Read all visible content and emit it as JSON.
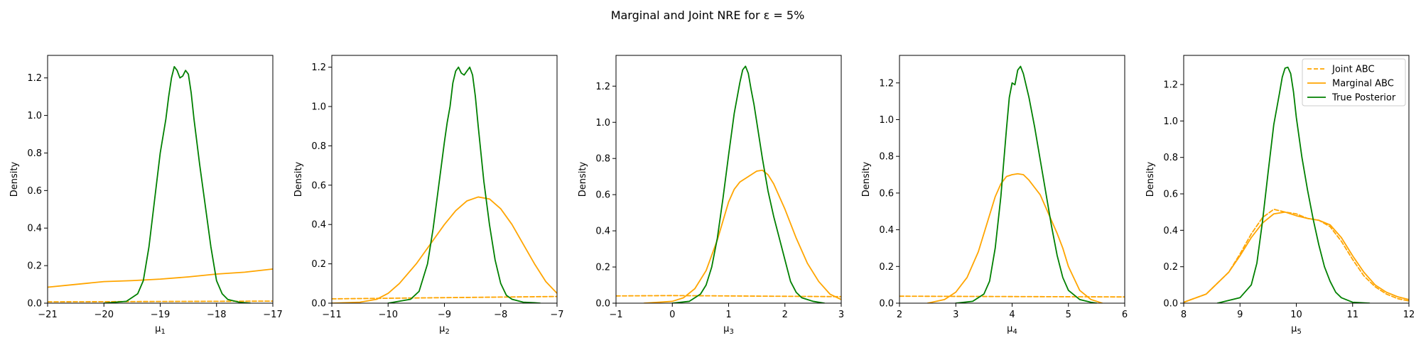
{
  "title": "Marginal and Joint NRE for ε =  5%",
  "colors": {
    "joint_abc": "#FFA500",
    "marginal_abc": "#FFA500",
    "true_posterior": "#008000"
  },
  "legend": {
    "placement": "upper right of panel 5",
    "entries": [
      {
        "label": "Joint ABC",
        "series": "joint_abc",
        "style": "dashed"
      },
      {
        "label": "Marginal ABC",
        "series": "marginal_abc",
        "style": "solid"
      },
      {
        "label": "True Posterior",
        "series": "true_posterior",
        "style": "solid"
      }
    ]
  },
  "chart_data": [
    {
      "type": "line",
      "xlabel": "μ",
      "xlabel_sub": "1",
      "ylabel": "Density",
      "xlim": [
        -21,
        -17
      ],
      "ylim": [
        0,
        1.32
      ],
      "xticks": [
        -21,
        -20,
        -19,
        -18,
        -17
      ],
      "xtick_labels": [
        "−21",
        "−20",
        "−19",
        "−18",
        "−17"
      ],
      "yticks": [
        0.0,
        0.2,
        0.4,
        0.6,
        0.8,
        1.0,
        1.2
      ],
      "ytick_labels": [
        "0.0",
        "0.2",
        "0.4",
        "0.6",
        "0.8",
        "1.0",
        "1.2"
      ],
      "series": [
        {
          "name": "Joint ABC",
          "key": "joint_abc",
          "x": [
            -21,
            -20,
            -19,
            -18,
            -17
          ],
          "y": [
            0.007,
            0.008,
            0.009,
            0.01,
            0.011
          ]
        },
        {
          "name": "Marginal ABC",
          "key": "marginal_abc",
          "x": [
            -21,
            -20.5,
            -20,
            -19.5,
            -19,
            -18.5,
            -18,
            -17.5,
            -17
          ],
          "y": [
            0.085,
            0.1,
            0.115,
            0.12,
            0.128,
            0.14,
            0.155,
            0.165,
            0.182
          ]
        },
        {
          "name": "True Posterior",
          "key": "true_posterior",
          "x": [
            -20.0,
            -19.6,
            -19.4,
            -19.3,
            -19.2,
            -19.1,
            -19.0,
            -18.9,
            -18.85,
            -18.8,
            -18.75,
            -18.7,
            -18.65,
            -18.6,
            -18.55,
            -18.5,
            -18.45,
            -18.4,
            -18.3,
            -18.2,
            -18.1,
            -18.0,
            -17.9,
            -17.8,
            -17.6,
            -17.4
          ],
          "y": [
            0.0,
            0.01,
            0.05,
            0.12,
            0.3,
            0.55,
            0.8,
            0.98,
            1.1,
            1.2,
            1.26,
            1.24,
            1.2,
            1.21,
            1.24,
            1.22,
            1.12,
            0.98,
            0.74,
            0.52,
            0.3,
            0.12,
            0.05,
            0.02,
            0.005,
            0.0
          ]
        }
      ]
    },
    {
      "type": "line",
      "xlabel": "μ",
      "xlabel_sub": "2",
      "ylabel": "Density",
      "xlim": [
        -11,
        -7
      ],
      "ylim": [
        0,
        1.26
      ],
      "xticks": [
        -11,
        -10,
        -9,
        -8,
        -7
      ],
      "xtick_labels": [
        "−11",
        "−10",
        "−9",
        "−8",
        "−7"
      ],
      "yticks": [
        0.0,
        0.2,
        0.4,
        0.6,
        0.8,
        1.0,
        1.2
      ],
      "ytick_labels": [
        "0.0",
        "0.2",
        "0.4",
        "0.6",
        "0.8",
        "1.0",
        "1.2"
      ],
      "series": [
        {
          "name": "Joint ABC",
          "key": "joint_abc",
          "x": [
            -11,
            -10,
            -9,
            -8,
            -7
          ],
          "y": [
            0.022,
            0.025,
            0.028,
            0.031,
            0.034
          ]
        },
        {
          "name": "Marginal ABC",
          "key": "marginal_abc",
          "x": [
            -11,
            -10.5,
            -10.2,
            -10.0,
            -9.8,
            -9.5,
            -9.2,
            -9.0,
            -8.8,
            -8.6,
            -8.4,
            -8.2,
            -8.0,
            -7.8,
            -7.6,
            -7.4,
            -7.2,
            -7.0
          ],
          "y": [
            0.0,
            0.005,
            0.02,
            0.05,
            0.1,
            0.2,
            0.32,
            0.4,
            0.47,
            0.52,
            0.54,
            0.53,
            0.48,
            0.4,
            0.3,
            0.2,
            0.11,
            0.05
          ]
        },
        {
          "name": "True Posterior",
          "key": "true_posterior",
          "x": [
            -10.0,
            -9.6,
            -9.45,
            -9.3,
            -9.2,
            -9.1,
            -9.0,
            -8.95,
            -8.9,
            -8.85,
            -8.8,
            -8.75,
            -8.7,
            -8.65,
            -8.6,
            -8.55,
            -8.5,
            -8.45,
            -8.4,
            -8.3,
            -8.2,
            -8.1,
            -8.0,
            -7.9,
            -7.8,
            -7.6,
            -7.4,
            -7.3
          ],
          "y": [
            0.0,
            0.02,
            0.06,
            0.2,
            0.38,
            0.6,
            0.82,
            0.92,
            1.0,
            1.12,
            1.18,
            1.2,
            1.17,
            1.16,
            1.18,
            1.2,
            1.16,
            1.05,
            0.9,
            0.62,
            0.4,
            0.22,
            0.1,
            0.04,
            0.02,
            0.005,
            0.002,
            0.0
          ]
        }
      ]
    },
    {
      "type": "line",
      "xlabel": "μ",
      "xlabel_sub": "3",
      "ylabel": "Density",
      "xlim": [
        -1,
        3
      ],
      "ylim": [
        0,
        1.37
      ],
      "xticks": [
        -1,
        0,
        1,
        2,
        3
      ],
      "xtick_labels": [
        "−1",
        "0",
        "1",
        "2",
        "3"
      ],
      "yticks": [
        0.0,
        0.2,
        0.4,
        0.6,
        0.8,
        1.0,
        1.2
      ],
      "ytick_labels": [
        "0.0",
        "0.2",
        "0.4",
        "0.6",
        "0.8",
        "1.0",
        "1.2"
      ],
      "series": [
        {
          "name": "Joint ABC",
          "key": "joint_abc",
          "x": [
            -1,
            0,
            1,
            2,
            3
          ],
          "y": [
            0.04,
            0.042,
            0.04,
            0.038,
            0.036
          ]
        },
        {
          "name": "Marginal ABC",
          "key": "marginal_abc",
          "x": [
            -0.5,
            0.0,
            0.2,
            0.4,
            0.6,
            0.8,
            1.0,
            1.1,
            1.2,
            1.3,
            1.4,
            1.5,
            1.6,
            1.7,
            1.8,
            2.0,
            2.2,
            2.4,
            2.6,
            2.8,
            3.0
          ],
          "y": [
            0.0,
            0.01,
            0.03,
            0.08,
            0.18,
            0.35,
            0.56,
            0.63,
            0.67,
            0.69,
            0.71,
            0.73,
            0.735,
            0.71,
            0.66,
            0.52,
            0.36,
            0.22,
            0.12,
            0.05,
            0.02
          ]
        },
        {
          "name": "True Posterior",
          "key": "true_posterior",
          "x": [
            0.0,
            0.3,
            0.5,
            0.6,
            0.7,
            0.8,
            0.9,
            1.0,
            1.1,
            1.2,
            1.25,
            1.3,
            1.35,
            1.4,
            1.45,
            1.5,
            1.6,
            1.7,
            1.8,
            1.9,
            2.0,
            2.1,
            2.2,
            2.3,
            2.5,
            2.7
          ],
          "y": [
            0.0,
            0.01,
            0.05,
            0.1,
            0.2,
            0.36,
            0.58,
            0.82,
            1.05,
            1.22,
            1.29,
            1.31,
            1.27,
            1.18,
            1.1,
            1.0,
            0.8,
            0.62,
            0.48,
            0.36,
            0.24,
            0.12,
            0.06,
            0.03,
            0.01,
            0.0
          ]
        }
      ]
    },
    {
      "type": "line",
      "xlabel": "μ",
      "xlabel_sub": "4",
      "ylabel": "Density",
      "xlim": [
        2,
        6
      ],
      "ylim": [
        0,
        1.35
      ],
      "xticks": [
        2,
        3,
        4,
        5,
        6
      ],
      "xtick_labels": [
        "2",
        "3",
        "4",
        "5",
        "6"
      ],
      "yticks": [
        0.0,
        0.2,
        0.4,
        0.6,
        0.8,
        1.0,
        1.2
      ],
      "ytick_labels": [
        "0.0",
        "0.2",
        "0.4",
        "0.6",
        "0.8",
        "1.0",
        "1.2"
      ],
      "series": [
        {
          "name": "Joint ABC",
          "key": "joint_abc",
          "x": [
            2,
            3,
            4,
            5,
            6
          ],
          "y": [
            0.038,
            0.037,
            0.036,
            0.035,
            0.034
          ]
        },
        {
          "name": "Marginal ABC",
          "key": "marginal_abc",
          "x": [
            2.5,
            2.8,
            3.0,
            3.2,
            3.4,
            3.5,
            3.6,
            3.7,
            3.8,
            3.9,
            4.0,
            4.1,
            4.2,
            4.3,
            4.4,
            4.5,
            4.6,
            4.7,
            4.8,
            4.9,
            5.0,
            5.2,
            5.4,
            5.6
          ],
          "y": [
            0.0,
            0.02,
            0.06,
            0.14,
            0.28,
            0.38,
            0.48,
            0.58,
            0.65,
            0.69,
            0.7,
            0.705,
            0.7,
            0.67,
            0.63,
            0.59,
            0.52,
            0.45,
            0.38,
            0.3,
            0.2,
            0.07,
            0.02,
            0.0
          ]
        },
        {
          "name": "True Posterior",
          "key": "true_posterior",
          "x": [
            3.0,
            3.3,
            3.5,
            3.6,
            3.7,
            3.8,
            3.9,
            3.95,
            4.0,
            4.05,
            4.1,
            4.15,
            4.2,
            4.3,
            4.4,
            4.5,
            4.6,
            4.7,
            4.8,
            4.9,
            5.0,
            5.2,
            5.4,
            5.5
          ],
          "y": [
            0.0,
            0.01,
            0.05,
            0.12,
            0.3,
            0.58,
            0.95,
            1.12,
            1.2,
            1.19,
            1.27,
            1.29,
            1.25,
            1.12,
            0.96,
            0.78,
            0.6,
            0.42,
            0.26,
            0.14,
            0.07,
            0.02,
            0.005,
            0.0
          ]
        }
      ]
    },
    {
      "type": "line",
      "xlabel": "μ",
      "xlabel_sub": "5",
      "ylabel": "Density",
      "xlim": [
        8,
        12
      ],
      "ylim": [
        0,
        1.36
      ],
      "xticks": [
        8,
        9,
        10,
        11,
        12
      ],
      "xtick_labels": [
        "8",
        "9",
        "10",
        "11",
        "12"
      ],
      "yticks": [
        0.0,
        0.2,
        0.4,
        0.6,
        0.8,
        1.0,
        1.2
      ],
      "ytick_labels": [
        "0.0",
        "0.2",
        "0.4",
        "0.6",
        "0.8",
        "1.0",
        "1.2"
      ],
      "series": [
        {
          "name": "Joint ABC",
          "key": "joint_abc",
          "x": [
            8.0,
            8.4,
            8.8,
            9.0,
            9.2,
            9.4,
            9.6,
            9.8,
            10.0,
            10.2,
            10.4,
            10.6,
            10.8,
            11.0,
            11.2,
            11.4,
            11.6,
            11.8,
            12.0
          ],
          "y": [
            0.005,
            0.05,
            0.17,
            0.27,
            0.38,
            0.47,
            0.515,
            0.5,
            0.49,
            0.465,
            0.455,
            0.42,
            0.34,
            0.24,
            0.15,
            0.09,
            0.05,
            0.025,
            0.012
          ]
        },
        {
          "name": "Marginal ABC",
          "key": "marginal_abc",
          "x": [
            8.0,
            8.4,
            8.8,
            9.0,
            9.2,
            9.4,
            9.6,
            9.8,
            10.0,
            10.2,
            10.4,
            10.6,
            10.8,
            11.0,
            11.2,
            11.4,
            11.6,
            11.8,
            12.0
          ],
          "y": [
            0.005,
            0.05,
            0.17,
            0.26,
            0.36,
            0.44,
            0.49,
            0.5,
            0.48,
            0.465,
            0.455,
            0.43,
            0.36,
            0.26,
            0.17,
            0.1,
            0.06,
            0.035,
            0.02
          ]
        },
        {
          "name": "True Posterior",
          "key": "true_posterior",
          "x": [
            8.6,
            9.0,
            9.2,
            9.3,
            9.4,
            9.5,
            9.6,
            9.7,
            9.75,
            9.8,
            9.85,
            9.9,
            9.95,
            10.0,
            10.1,
            10.2,
            10.3,
            10.4,
            10.5,
            10.6,
            10.7,
            10.8,
            11.0,
            11.3
          ],
          "y": [
            0.0,
            0.03,
            0.1,
            0.22,
            0.45,
            0.72,
            0.98,
            1.15,
            1.24,
            1.29,
            1.295,
            1.26,
            1.16,
            1.02,
            0.8,
            0.62,
            0.46,
            0.32,
            0.2,
            0.12,
            0.06,
            0.03,
            0.005,
            0.0
          ]
        }
      ]
    }
  ]
}
